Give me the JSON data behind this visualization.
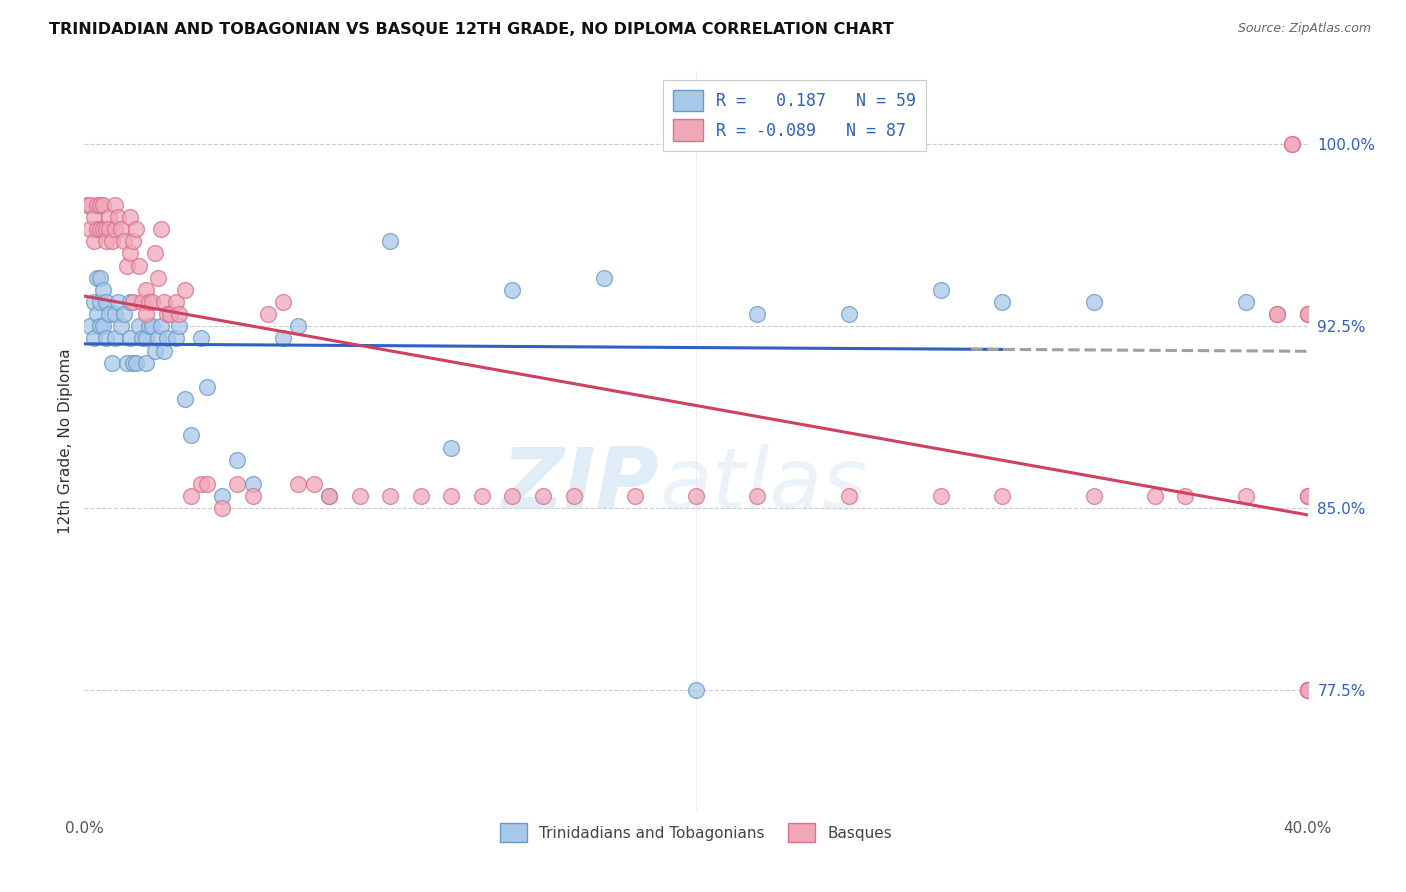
{
  "title": "TRINIDADIAN AND TOBAGONIAN VS BASQUE 12TH GRADE, NO DIPLOMA CORRELATION CHART",
  "source": "Source: ZipAtlas.com",
  "ylabel": "12th Grade, No Diploma",
  "ytick_values": [
    1.0,
    0.925,
    0.85,
    0.775
  ],
  "xlim": [
    0.0,
    0.4
  ],
  "ylim": [
    0.725,
    1.03
  ],
  "blue_color": "#a8c8e8",
  "pink_color": "#f0a8b8",
  "blue_edge_color": "#6899cc",
  "pink_edge_color": "#d87090",
  "blue_line_color": "#3060c0",
  "pink_line_color": "#d04060",
  "dash_line_color": "#a0a0a0",
  "legend_blue_label": "R =   0.187   N = 59",
  "legend_pink_label": "R = -0.089   N = 87",
  "legend_label1": "Trinidadians and Tobagonians",
  "legend_label2": "Basques",
  "blue_scatter_x": [
    0.002,
    0.003,
    0.003,
    0.004,
    0.004,
    0.005,
    0.005,
    0.005,
    0.006,
    0.006,
    0.007,
    0.007,
    0.008,
    0.009,
    0.01,
    0.01,
    0.011,
    0.012,
    0.013,
    0.014,
    0.015,
    0.015,
    0.016,
    0.017,
    0.018,
    0.019,
    0.02,
    0.02,
    0.021,
    0.022,
    0.023,
    0.024,
    0.025,
    0.026,
    0.027,
    0.028,
    0.03,
    0.031,
    0.033,
    0.035,
    0.038,
    0.04,
    0.045,
    0.05,
    0.055,
    0.065,
    0.07,
    0.08,
    0.1,
    0.12,
    0.14,
    0.17,
    0.2,
    0.22,
    0.25,
    0.28,
    0.3,
    0.33,
    0.38
  ],
  "blue_scatter_y": [
    0.925,
    0.935,
    0.92,
    0.945,
    0.93,
    0.945,
    0.935,
    0.925,
    0.94,
    0.925,
    0.935,
    0.92,
    0.93,
    0.91,
    0.93,
    0.92,
    0.935,
    0.925,
    0.93,
    0.91,
    0.935,
    0.92,
    0.91,
    0.91,
    0.925,
    0.92,
    0.92,
    0.91,
    0.925,
    0.925,
    0.915,
    0.92,
    0.925,
    0.915,
    0.92,
    0.93,
    0.92,
    0.925,
    0.895,
    0.88,
    0.92,
    0.9,
    0.855,
    0.87,
    0.86,
    0.92,
    0.925,
    0.855,
    0.96,
    0.875,
    0.94,
    0.945,
    0.775,
    0.93,
    0.93,
    0.94,
    0.935,
    0.935,
    0.935
  ],
  "pink_scatter_x": [
    0.001,
    0.002,
    0.002,
    0.003,
    0.003,
    0.004,
    0.004,
    0.005,
    0.005,
    0.006,
    0.006,
    0.007,
    0.007,
    0.008,
    0.008,
    0.009,
    0.01,
    0.01,
    0.011,
    0.012,
    0.013,
    0.014,
    0.015,
    0.015,
    0.016,
    0.016,
    0.017,
    0.018,
    0.019,
    0.02,
    0.02,
    0.021,
    0.022,
    0.023,
    0.024,
    0.025,
    0.026,
    0.027,
    0.028,
    0.03,
    0.031,
    0.033,
    0.035,
    0.038,
    0.04,
    0.045,
    0.05,
    0.055,
    0.06,
    0.065,
    0.07,
    0.075,
    0.08,
    0.09,
    0.1,
    0.11,
    0.12,
    0.13,
    0.14,
    0.15,
    0.16,
    0.18,
    0.2,
    0.22,
    0.25,
    0.28,
    0.3,
    0.33,
    0.35,
    0.36,
    0.38,
    0.39,
    0.39,
    0.395,
    0.395,
    0.4,
    0.4,
    0.4,
    0.4,
    0.4,
    0.4,
    0.4,
    0.4,
    0.4,
    0.4,
    0.4,
    0.4
  ],
  "pink_scatter_y": [
    0.975,
    0.975,
    0.965,
    0.97,
    0.96,
    0.975,
    0.965,
    0.975,
    0.965,
    0.975,
    0.965,
    0.965,
    0.96,
    0.97,
    0.965,
    0.96,
    0.975,
    0.965,
    0.97,
    0.965,
    0.96,
    0.95,
    0.97,
    0.955,
    0.96,
    0.935,
    0.965,
    0.95,
    0.935,
    0.94,
    0.93,
    0.935,
    0.935,
    0.955,
    0.945,
    0.965,
    0.935,
    0.93,
    0.93,
    0.935,
    0.93,
    0.94,
    0.855,
    0.86,
    0.86,
    0.85,
    0.86,
    0.855,
    0.93,
    0.935,
    0.86,
    0.86,
    0.855,
    0.855,
    0.855,
    0.855,
    0.855,
    0.855,
    0.855,
    0.855,
    0.855,
    0.855,
    0.855,
    0.855,
    0.855,
    0.855,
    0.855,
    0.855,
    0.855,
    0.855,
    0.855,
    0.93,
    0.93,
    1.0,
    1.0,
    0.93,
    0.93,
    0.93,
    0.775,
    0.775,
    0.775,
    0.855,
    0.855,
    0.855,
    0.775,
    0.775,
    0.775
  ]
}
